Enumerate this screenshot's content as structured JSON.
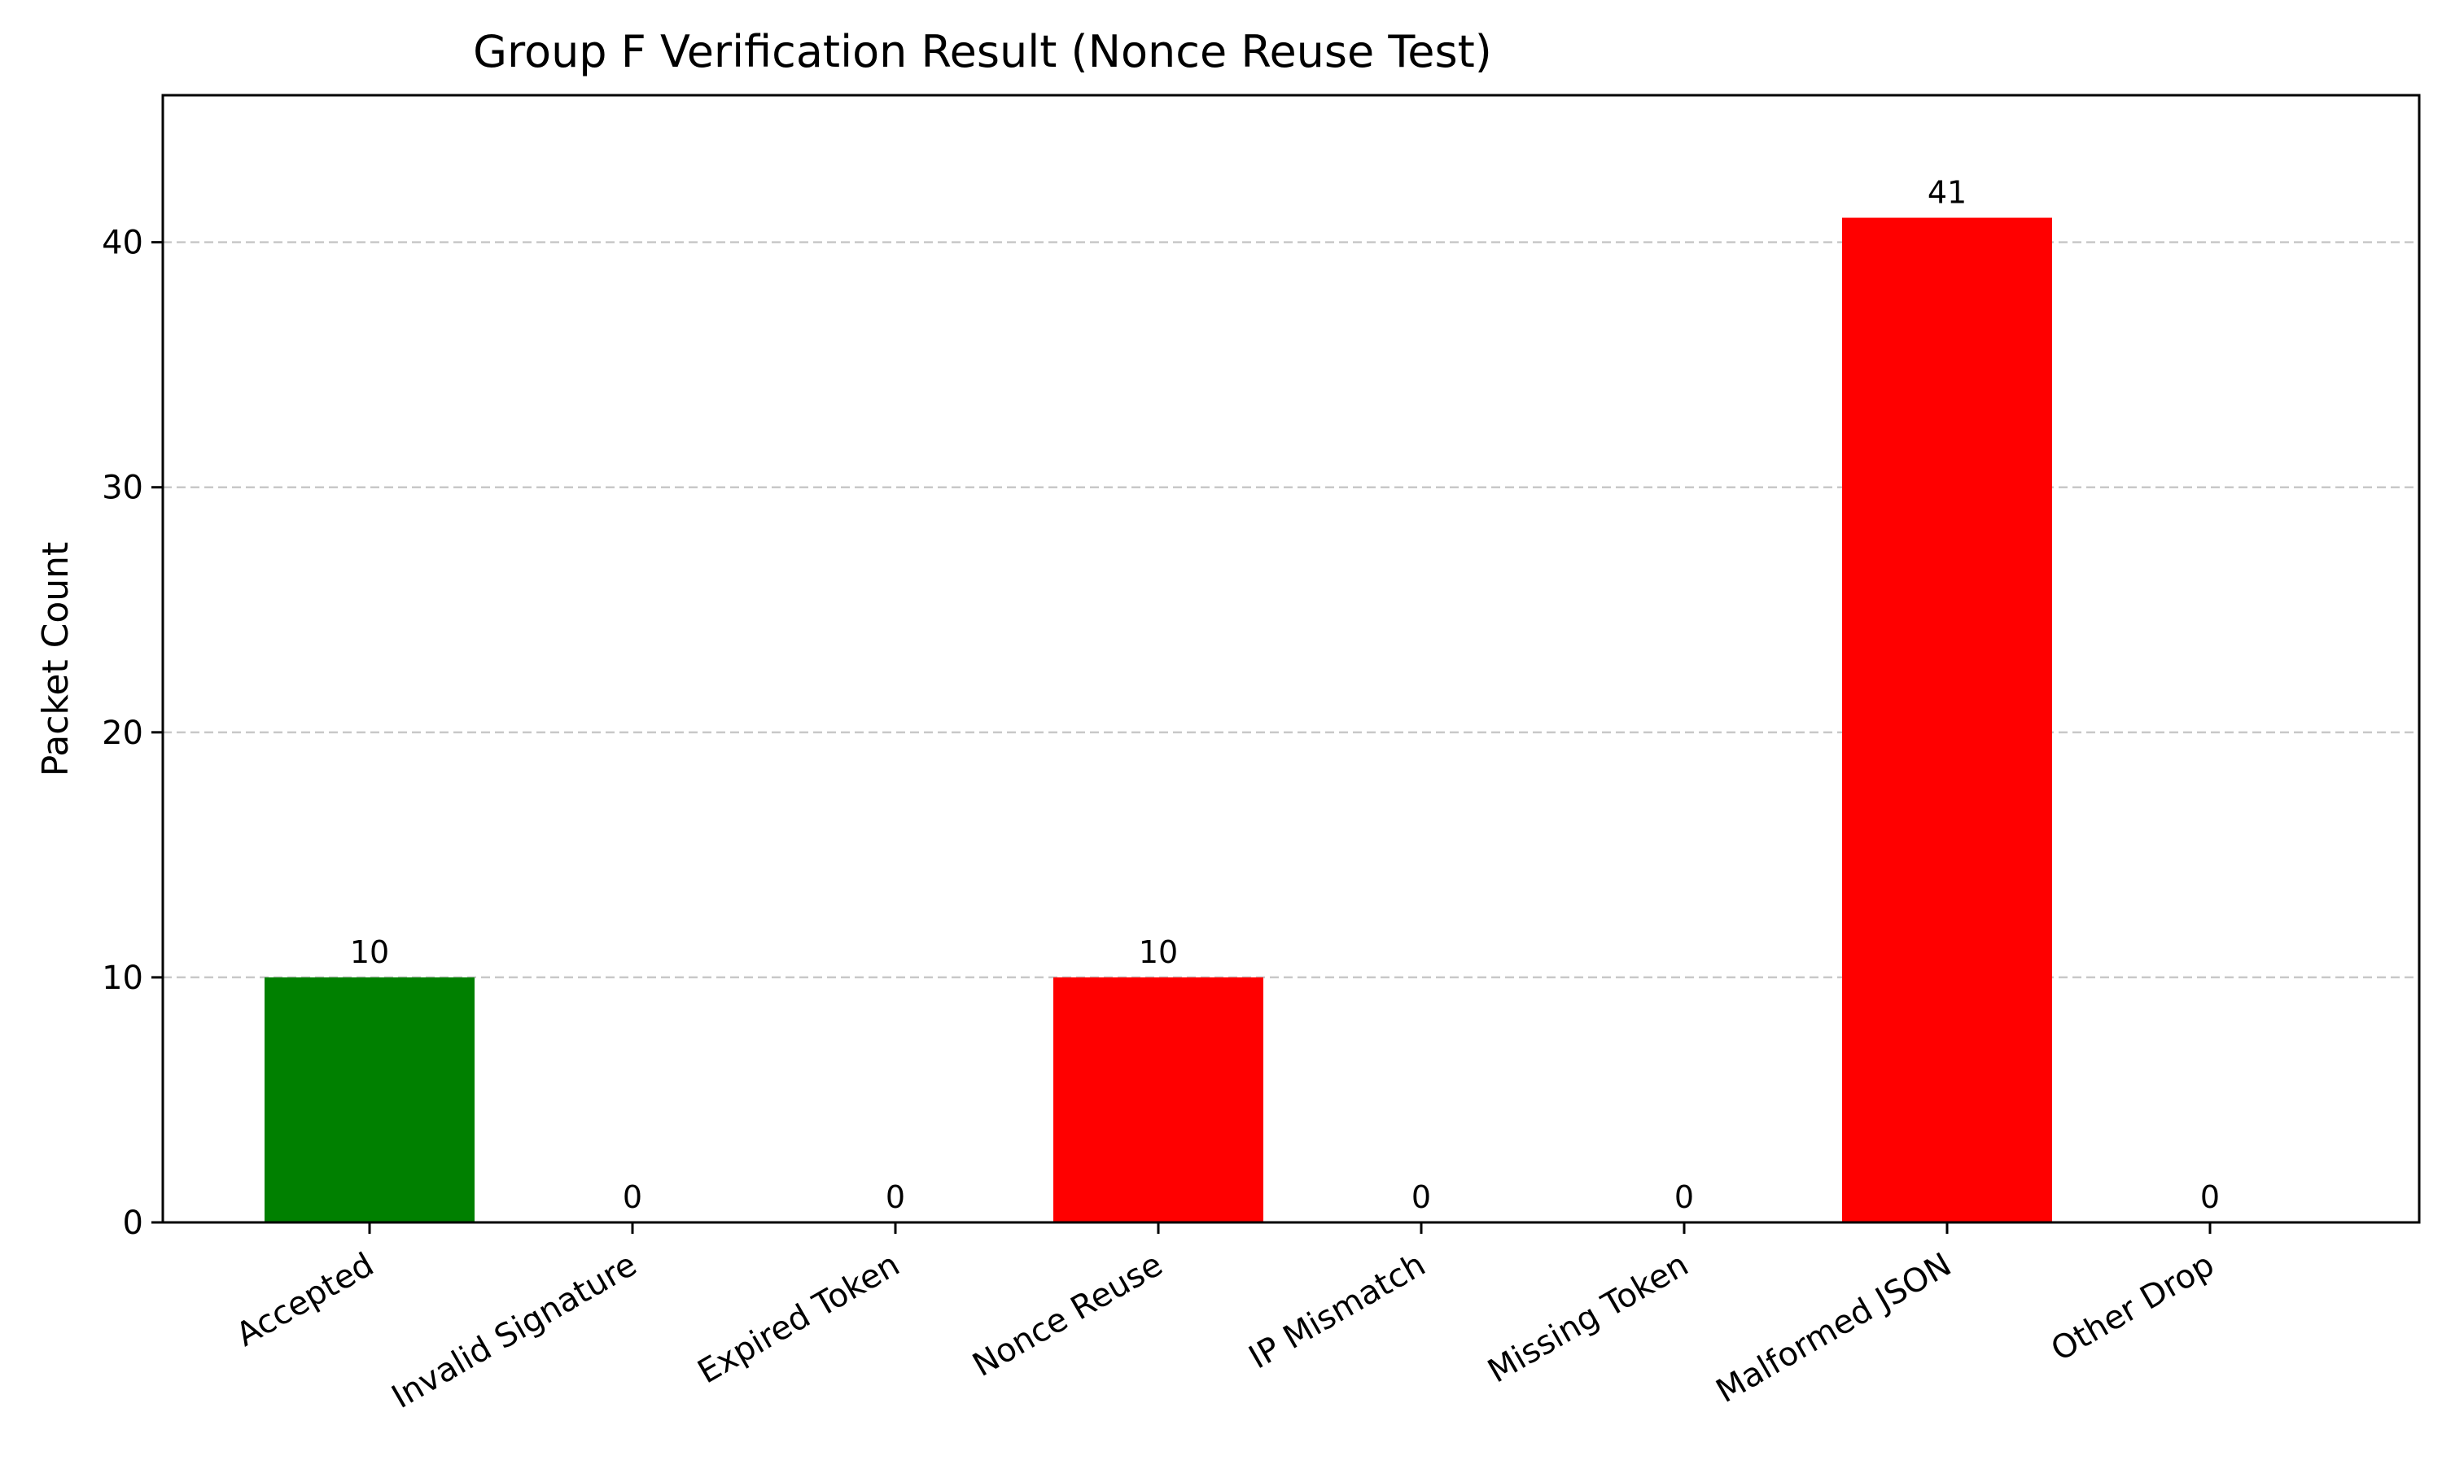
{
  "chart_data": {
    "type": "bar",
    "title": "Group F Verification Result (Nonce Reuse Test)",
    "xlabel": "",
    "ylabel": "Packet Count",
    "categories": [
      "Accepted",
      "Invalid Signature",
      "Expired Token",
      "Nonce Reuse",
      "IP Mismatch",
      "Missing Token",
      "Malformed JSON",
      "Other Drop"
    ],
    "values": [
      10,
      0,
      0,
      10,
      0,
      0,
      41,
      0
    ],
    "bar_colors": [
      "#008000",
      "#ff0000",
      "#ff0000",
      "#ff0000",
      "#ff0000",
      "#ff0000",
      "#ff0000",
      "#ff0000"
    ],
    "data_labels": [
      "10",
      "0",
      "0",
      "10",
      "0",
      "0",
      "41",
      "0"
    ],
    "ylim": [
      0,
      46
    ],
    "yticks": [
      0,
      10,
      20,
      30,
      40
    ],
    "ytick_labels": [
      "0",
      "10",
      "20",
      "30",
      "40"
    ],
    "grid": "y-dashed",
    "legend": "none",
    "grid_color": "#c8c8c8"
  }
}
